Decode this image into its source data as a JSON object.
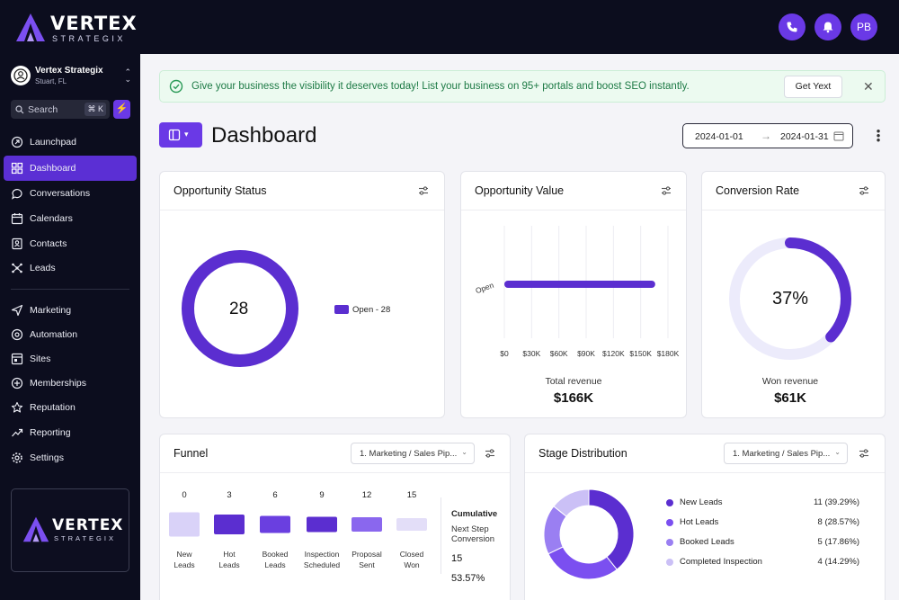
{
  "brand": {
    "name": "VERTEX",
    "tagline": "STRATEGIX"
  },
  "account": {
    "name": "Vertex Strategix",
    "location": "Stuart, FL"
  },
  "search": {
    "label": "Search",
    "shortcut": "⌘ K"
  },
  "sidebar": {
    "items": [
      {
        "label": "Launchpad",
        "icon": "launchpad-icon",
        "active": false
      },
      {
        "label": "Dashboard",
        "icon": "dashboard-grid-icon",
        "active": true
      },
      {
        "label": "Conversations",
        "icon": "chat-bubble-icon",
        "active": false
      },
      {
        "label": "Calendars",
        "icon": "calendar-icon",
        "active": false
      },
      {
        "label": "Contacts",
        "icon": "contacts-icon",
        "active": false
      },
      {
        "label": "Leads",
        "icon": "leads-icon",
        "active": false
      },
      {
        "label": "Marketing",
        "icon": "send-icon",
        "active": false
      },
      {
        "label": "Automation",
        "icon": "automation-icon",
        "active": false
      },
      {
        "label": "Sites",
        "icon": "sites-icon",
        "active": false
      },
      {
        "label": "Memberships",
        "icon": "memberships-icon",
        "active": false
      },
      {
        "label": "Reputation",
        "icon": "star-icon",
        "active": false
      },
      {
        "label": "Reporting",
        "icon": "trend-icon",
        "active": false
      },
      {
        "label": "Settings",
        "icon": "gear-icon",
        "active": false
      }
    ]
  },
  "topbar": {
    "avatar_initials": "PB"
  },
  "banner": {
    "text": "Give your business the visibility it deserves today! List your business on 95+ portals and boost SEO instantly.",
    "button": "Get Yext"
  },
  "dashboard": {
    "title": "Dashboard",
    "date_start": "2024-01-01",
    "date_end": "2024-01-31"
  },
  "opportunity_status": {
    "title": "Opportunity Status",
    "center_value": "28",
    "legend": "Open - 28"
  },
  "opportunity_value": {
    "title": "Opportunity Value",
    "bar_label": "Open",
    "ticks": [
      "$0",
      "$30K",
      "$60K",
      "$90K",
      "$120K",
      "$150K",
      "$180K"
    ],
    "total_label": "Total revenue",
    "total_value": "$166K"
  },
  "conversion_rate": {
    "title": "Conversion Rate",
    "center_value": "37%",
    "won_label": "Won revenue",
    "won_value": "$61K"
  },
  "funnel": {
    "title": "Funnel",
    "pipeline": "1. Marketing / Sales Pip...",
    "cumulative_label": "Cumulative",
    "next_step_label": "Next Step\nConversion",
    "cumulative_value": "15",
    "conversion_value": "53.57%"
  },
  "stage_distribution": {
    "title": "Stage Distribution",
    "pipeline": "1. Marketing / Sales Pip..."
  },
  "colors": {
    "accent": "#6a39e6",
    "sidebar_bg": "#0c0d1e",
    "active_nav": "#5b2fd4",
    "donut": "#5b2ed0",
    "light_purple": "#ecebfb"
  },
  "chart_data": [
    {
      "type": "pie",
      "title": "Opportunity Status",
      "series": [
        {
          "name": "Open",
          "values": [
            28
          ]
        }
      ],
      "categories": [
        "Open"
      ]
    },
    {
      "type": "bar",
      "title": "Opportunity Value",
      "categories": [
        "Open"
      ],
      "values": [
        166000
      ],
      "orientation": "horizontal",
      "xlim": [
        0,
        180000
      ],
      "tick_labels": [
        "$0",
        "$30K",
        "$60K",
        "$90K",
        "$120K",
        "$150K",
        "$180K"
      ]
    },
    {
      "type": "pie",
      "title": "Conversion Rate",
      "categories": [
        "Won"
      ],
      "values": [
        37
      ]
    },
    {
      "type": "bar",
      "title": "Funnel",
      "categories": [
        "New\nLeads",
        "Hot\nLeads",
        "Booked\nLeads",
        "Inspection\nScheduled",
        "Proposal\nSent",
        "Closed\nWon"
      ],
      "values": [
        0,
        3,
        6,
        9,
        12,
        15
      ],
      "value_labels": [
        "0",
        "3",
        "6",
        "9",
        "12",
        "15"
      ]
    },
    {
      "type": "pie",
      "title": "Stage Distribution",
      "categories": [
        "New Leads",
        "Hot Leads",
        "Booked Leads",
        "Completed Inspection"
      ],
      "values": [
        11,
        8,
        5,
        4
      ],
      "value_labels": [
        "11 (39.29%)",
        "8 (28.57%)",
        "5 (17.86%)",
        "4 (14.29%)"
      ],
      "colors": [
        "#5b2ed0",
        "#7b4ff0",
        "#9a7ff2",
        "#cbc0f6"
      ]
    }
  ]
}
